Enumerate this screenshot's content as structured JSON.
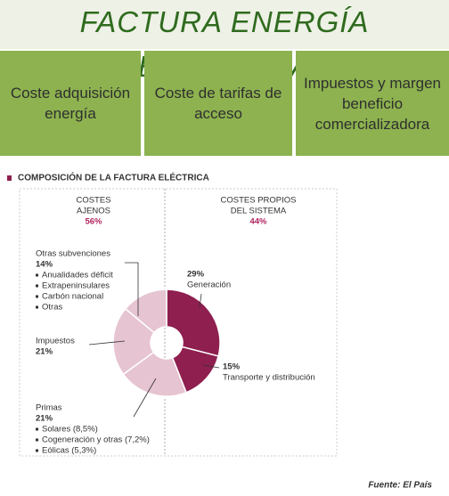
{
  "header": {
    "title": "FACTURA ENERGÍA ELÉCTRICA"
  },
  "boxes": [
    "Coste adquisición energía",
    "Coste de tarifas de acceso",
    "Impuestos y margen beneficio comercializadora"
  ],
  "chart_data": {
    "type": "pie",
    "title": "COMPOSICIÓN DE LA FACTURA ELÉCTRICA",
    "groups": [
      {
        "label": [
          "COSTES",
          "AJENOS"
        ],
        "share": "56%"
      },
      {
        "label": [
          "COSTES PROPIOS",
          "DEL SISTEMA"
        ],
        "share": "44%"
      }
    ],
    "categories": [
      "Generación",
      "Transporte y distribución",
      "Primas",
      "Impuestos",
      "Otras subvenciones"
    ],
    "values": [
      29,
      15,
      21,
      21,
      14
    ],
    "value_labels": [
      "29%",
      "15%",
      "21%",
      "21%",
      "14%"
    ],
    "colors": [
      "#8e1f4f",
      "#8e1f4f",
      "#e6c4d1",
      "#e6c4d1",
      "#e6c4d1"
    ],
    "details": {
      "2": [
        "Solares (8,5%)",
        "Cogeneración y otras (7,2%)",
        "Eólicas (5,3%)"
      ],
      "4": [
        "Anualidades déficit",
        "Extrapeninsulares",
        "Carbón nacional",
        "Otras"
      ]
    }
  },
  "source": "Fuente: El País"
}
